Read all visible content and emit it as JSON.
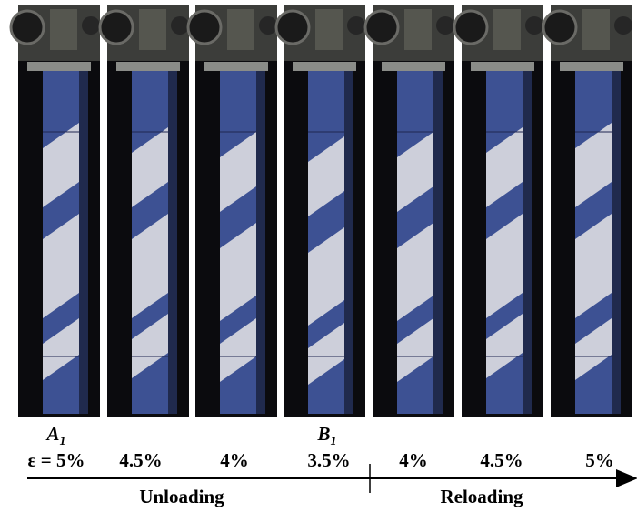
{
  "figure": {
    "markers": [
      {
        "letter": "A",
        "subscript": "1"
      },
      {
        "letter": "B",
        "subscript": "1"
      }
    ],
    "strain_labels": [
      "ε = 5%",
      "4.5%",
      "4%",
      "3.5%",
      "4%",
      "4.5%",
      "5%"
    ],
    "phases": [
      "Unloading",
      "Reloading"
    ]
  }
}
